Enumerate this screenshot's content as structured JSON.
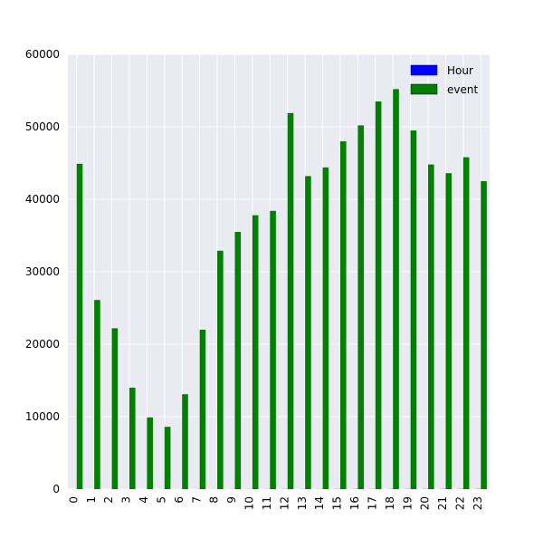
{
  "chart_data": {
    "type": "bar",
    "title": "",
    "xlabel": "",
    "ylabel": "",
    "categories": [
      "0",
      "1",
      "2",
      "3",
      "4",
      "5",
      "6",
      "7",
      "8",
      "9",
      "10",
      "11",
      "12",
      "13",
      "14",
      "15",
      "16",
      "17",
      "18",
      "19",
      "20",
      "21",
      "22",
      "23"
    ],
    "series": [
      {
        "name": "Hour",
        "color": "#0000ff",
        "values": [
          0,
          1,
          2,
          3,
          4,
          5,
          6,
          7,
          8,
          9,
          10,
          11,
          12,
          13,
          14,
          15,
          16,
          17,
          18,
          19,
          20,
          21,
          22,
          23
        ]
      },
      {
        "name": "event",
        "color": "#008000",
        "values": [
          44900,
          26100,
          22200,
          14000,
          9900,
          8600,
          13100,
          22000,
          32900,
          35500,
          37800,
          38400,
          51900,
          43200,
          44400,
          48000,
          50200,
          53500,
          55200,
          49500,
          44800,
          43600,
          45800,
          42500
        ]
      }
    ],
    "ylim": [
      0,
      60000
    ],
    "yticks": [
      "0",
      "10000",
      "20000",
      "30000",
      "40000",
      "50000",
      "60000"
    ],
    "grid": true,
    "legend_position": "top-right",
    "background": "#eaeaf2"
  }
}
